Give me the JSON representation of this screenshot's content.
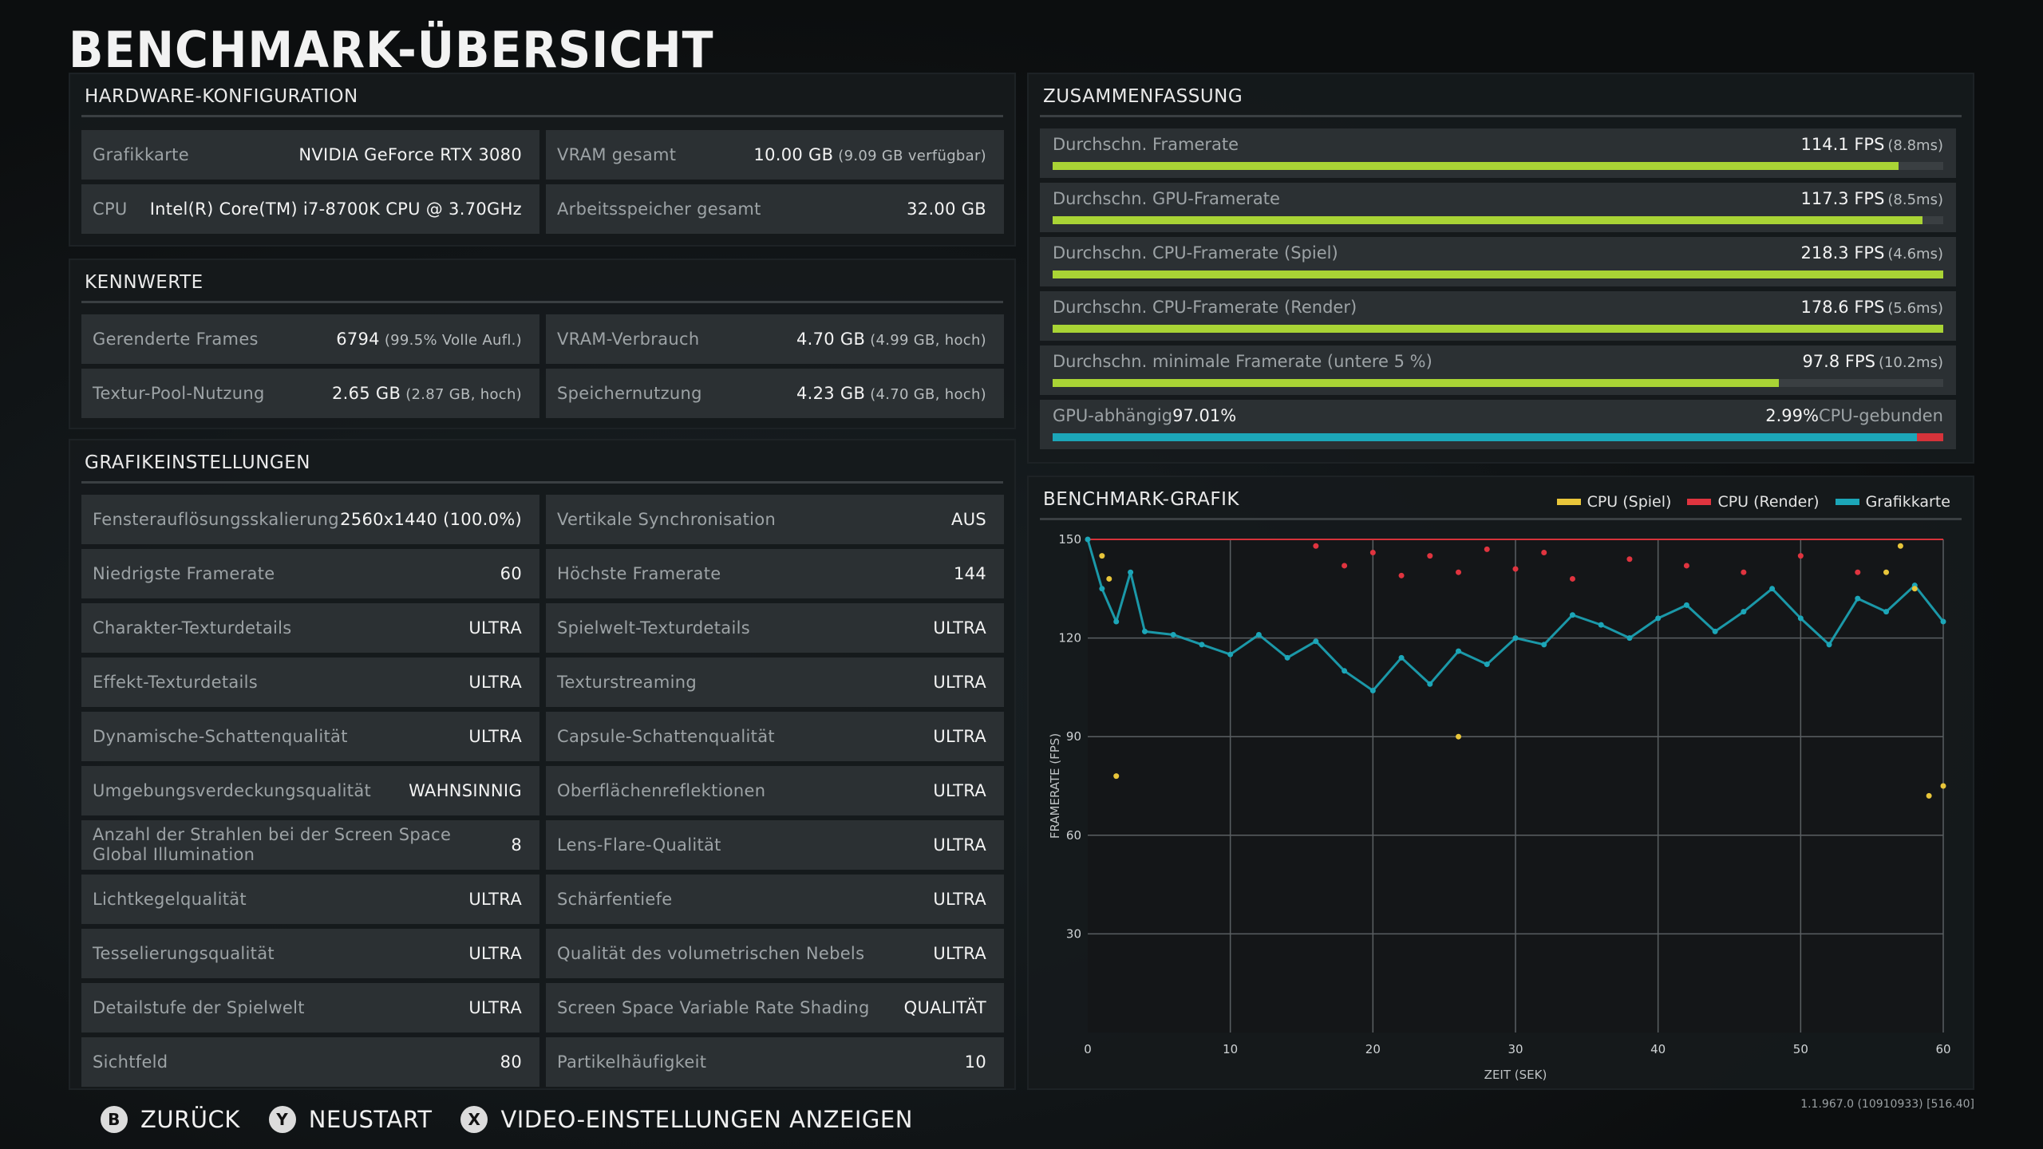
{
  "title": "BENCHMARK-ÜBERSICHT",
  "hardware": {
    "header": "HARDWARE-KONFIGURATION",
    "cells": [
      {
        "label": "Grafikkarte",
        "value": "NVIDIA GeForce RTX 3080",
        "detail": ""
      },
      {
        "label": "VRAM gesamt",
        "value": "10.00 GB",
        "detail": "(9.09 GB verfügbar)"
      },
      {
        "label": "CPU",
        "value": "Intel(R) Core(TM) i7-8700K CPU @ 3.70GHz",
        "detail": ""
      },
      {
        "label": "Arbeitsspeicher gesamt",
        "value": "32.00 GB",
        "detail": ""
      }
    ]
  },
  "kennwerte": {
    "header": "KENNWERTE",
    "cells": [
      {
        "label": "Gerenderte Frames",
        "value": "6794",
        "detail": "(99.5% Volle Aufl.)"
      },
      {
        "label": "VRAM-Verbrauch",
        "value": "4.70 GB",
        "detail": "(4.99 GB, hoch)"
      },
      {
        "label": "Textur-Pool-Nutzung",
        "value": "2.65 GB",
        "detail": "(2.87 GB, hoch)"
      },
      {
        "label": "Speichernutzung",
        "value": "4.23 GB",
        "detail": "(4.70 GB, hoch)"
      }
    ]
  },
  "grafik": {
    "header": "GRAFIKEINSTELLUNGEN",
    "cells": [
      {
        "label": "Fensterauflösungsskalierung",
        "value": "2560x1440 (100.0%)"
      },
      {
        "label": "Vertikale Synchronisation",
        "value": "AUS"
      },
      {
        "label": "Niedrigste Framerate",
        "value": "60"
      },
      {
        "label": "Höchste Framerate",
        "value": "144"
      },
      {
        "label": "Charakter-Texturdetails",
        "value": "ULTRA"
      },
      {
        "label": "Spielwelt-Texturdetails",
        "value": "ULTRA"
      },
      {
        "label": "Effekt-Texturdetails",
        "value": "ULTRA"
      },
      {
        "label": "Texturstreaming",
        "value": "ULTRA"
      },
      {
        "label": "Dynamische-Schattenqualität",
        "value": "ULTRA"
      },
      {
        "label": "Capsule-Schattenqualität",
        "value": "ULTRA"
      },
      {
        "label": "Umgebungsverdeckungsqualität",
        "value": "WAHNSINNIG"
      },
      {
        "label": "Oberflächenreflektionen",
        "value": "ULTRA"
      },
      {
        "label": "Anzahl der Strahlen bei der Screen Space Global Illumination",
        "value": "8"
      },
      {
        "label": "Lens-Flare-Qualität",
        "value": "ULTRA"
      },
      {
        "label": "Lichtkegelqualität",
        "value": "ULTRA"
      },
      {
        "label": "Schärfentiefe",
        "value": "ULTRA"
      },
      {
        "label": "Tesselierungsqualität",
        "value": "ULTRA"
      },
      {
        "label": "Qualität des volumetrischen Nebels",
        "value": "ULTRA"
      },
      {
        "label": "Detailstufe der Spielwelt",
        "value": "ULTRA"
      },
      {
        "label": "Screen Space Variable Rate Shading",
        "value": "QUALITÄT"
      },
      {
        "label": "Sichtfeld",
        "value": "80"
      },
      {
        "label": "Partikelhäufigkeit",
        "value": "10"
      }
    ]
  },
  "summary": {
    "header": "ZUSAMMENFASSUNG",
    "rows": [
      {
        "label": "Durchschn. Framerate",
        "value": "114.1 FPS",
        "detail": "(8.8ms)",
        "fill": 0.95
      },
      {
        "label": "Durchschn. GPU-Framerate",
        "value": "117.3 FPS",
        "detail": "(8.5ms)",
        "fill": 0.977
      },
      {
        "label": "Durchschn. CPU-Framerate (Spiel)",
        "value": "218.3 FPS",
        "detail": "(4.6ms)",
        "fill": 1.0
      },
      {
        "label": "Durchschn. CPU-Framerate (Render)",
        "value": "178.6 FPS",
        "detail": "(5.6ms)",
        "fill": 1.0
      },
      {
        "label": "Durchschn. minimale Framerate (untere 5 %)",
        "value": "97.8 FPS",
        "detail": "(10.2ms)",
        "fill": 0.815
      }
    ],
    "split": {
      "left_label": "GPU-abhängig",
      "left_value": "97.01%",
      "right_value": "2.99%",
      "right_label": "CPU-gebunden",
      "gpu_fraction": 0.9701
    }
  },
  "bench": {
    "header": "BENCHMARK-GRAFIK",
    "legend": [
      {
        "name": "CPU (Spiel)",
        "color": "#e8c53a"
      },
      {
        "name": "CPU (Render)",
        "color": "#e0343f"
      },
      {
        "name": "Grafikkarte",
        "color": "#1ca6b8"
      }
    ]
  },
  "chart_data": {
    "type": "scatter",
    "xlabel": "ZEIT (SEK)",
    "ylabel": "FRAMERATE (FPS)",
    "xlim": [
      0,
      60
    ],
    "ylim": [
      0,
      150
    ],
    "x_ticks": [
      0,
      10,
      20,
      30,
      40,
      50,
      60
    ],
    "y_ticks": [
      30,
      60,
      90,
      120,
      150
    ],
    "grid": true,
    "series": [
      {
        "name": "Grafikkarte",
        "x": [
          0,
          1,
          2,
          3,
          4,
          6,
          8,
          10,
          12,
          14,
          16,
          18,
          20,
          22,
          24,
          26,
          28,
          30,
          32,
          34,
          36,
          38,
          40,
          42,
          44,
          46,
          48,
          50,
          52,
          54,
          56,
          58,
          60
        ],
        "y": [
          150,
          135,
          125,
          140,
          122,
          121,
          118,
          115,
          121,
          114,
          119,
          110,
          104,
          114,
          106,
          116,
          112,
          120,
          118,
          127,
          124,
          120,
          126,
          130,
          122,
          128,
          135,
          126,
          118,
          132,
          128,
          136,
          125
        ]
      },
      {
        "name": "CPU (Render)",
        "x": [
          16,
          18,
          20,
          22,
          24,
          26,
          28,
          30,
          32,
          34,
          38,
          42,
          46,
          50,
          54
        ],
        "y": [
          148,
          142,
          146,
          139,
          145,
          140,
          147,
          141,
          146,
          138,
          144,
          142,
          140,
          145,
          140
        ]
      },
      {
        "name": "CPU (Spiel)",
        "x": [
          1,
          1.5,
          2,
          26,
          56,
          57,
          58,
          59,
          60
        ],
        "y": [
          145,
          138,
          78,
          90,
          140,
          148,
          135,
          72,
          75
        ]
      }
    ]
  },
  "footer": {
    "buttons": [
      {
        "glyph": "B",
        "label": "ZURÜCK"
      },
      {
        "glyph": "Y",
        "label": "NEUSTART"
      },
      {
        "glyph": "X",
        "label": "VIDEO-EINSTELLUNGEN ANZEIGEN"
      }
    ],
    "version": "1.1.967.0 (10910933) [516.40]"
  }
}
